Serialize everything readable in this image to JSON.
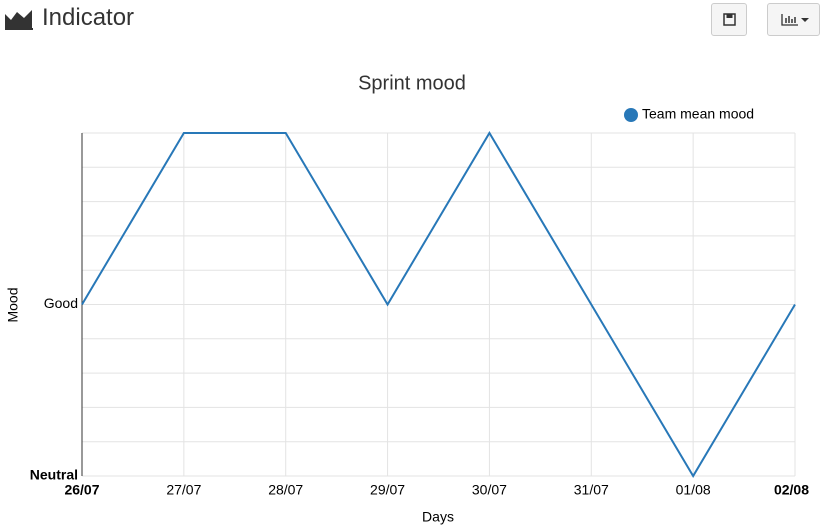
{
  "header": {
    "title": "Indicator"
  },
  "chart_data": {
    "type": "line",
    "title": "Sprint mood",
    "x_label": "Days",
    "y_label": "Mood",
    "categories": [
      "26/07",
      "27/07",
      "28/07",
      "29/07",
      "30/07",
      "31/07",
      "01/08",
      "02/08"
    ],
    "series": [
      {
        "name": "Team mean mood",
        "color": "#2878b8",
        "values": [
          5,
          10,
          10,
          5,
          10,
          5,
          0,
          5
        ]
      }
    ],
    "ylim": [
      0,
      10
    ],
    "yticks": [
      {
        "value": 0,
        "label": "Neutral"
      },
      {
        "value": 5,
        "label": "Good"
      }
    ],
    "y_minor_ticks": [
      1,
      2,
      3,
      4,
      6,
      7,
      8,
      9,
      10
    ],
    "grid": true,
    "legend": "top-right"
  }
}
